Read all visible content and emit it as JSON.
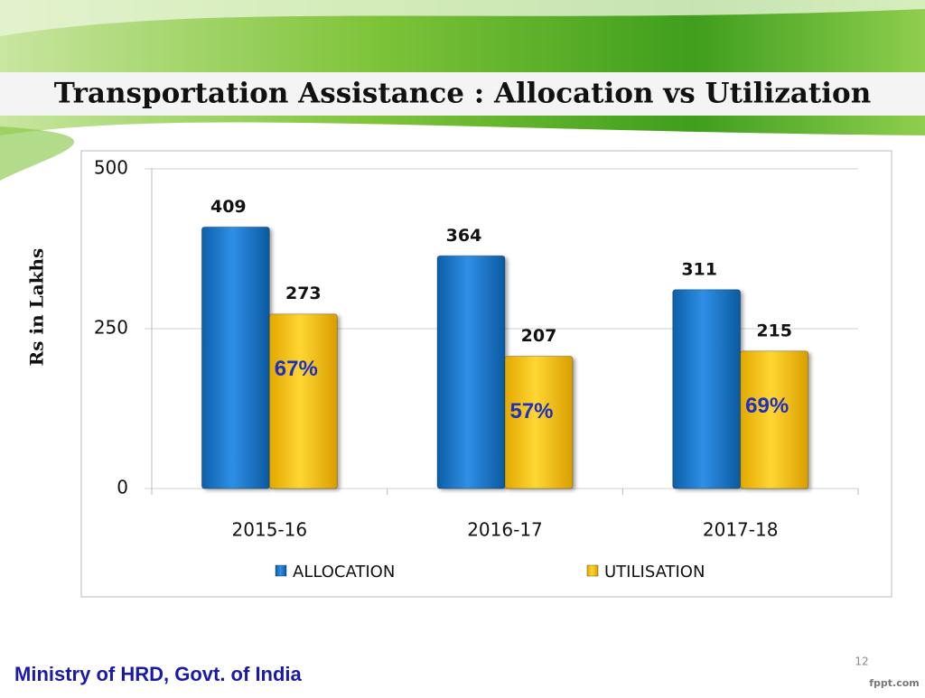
{
  "chart_data": {
    "type": "bar",
    "title": "Transportation Assistance : Allocation vs Utilization",
    "y_label": "Rs in Lakhs",
    "categories": [
      "2015-16",
      "2016-17",
      "2017-18"
    ],
    "series": [
      {
        "name": "ALLOCATION",
        "color": "#0a72c8",
        "values": [
          409,
          364,
          311
        ]
      },
      {
        "name": "UTILISATION",
        "color": "#ffc80a",
        "values": [
          273,
          207,
          215
        ]
      }
    ],
    "annotations": [
      "67%",
      "57%",
      "69%"
    ],
    "ylim": [
      0,
      500
    ],
    "yticks": [
      0,
      250,
      500
    ],
    "grid": true,
    "legend": "bottom"
  },
  "footer": {
    "org": "Ministry of HRD, Govt. of India",
    "page": "12",
    "brand": "fppt.com"
  }
}
